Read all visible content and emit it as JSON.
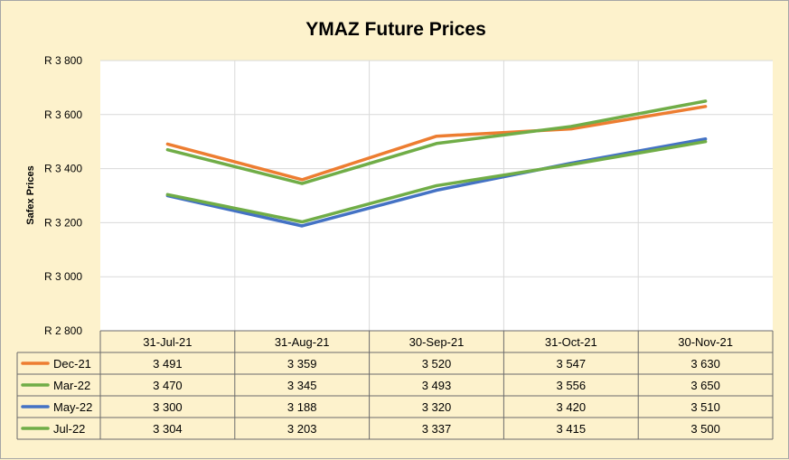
{
  "chart_data": {
    "type": "line",
    "title": "YMAZ Future Prices",
    "ylabel": "Safex Prices",
    "xlabel": "",
    "categories": [
      "31-Jul-21",
      "31-Aug-21",
      "30-Sep-21",
      "31-Oct-21",
      "30-Nov-21"
    ],
    "ylim": [
      2800,
      3800
    ],
    "yticks": [
      2800,
      3000,
      3200,
      3400,
      3600,
      3800
    ],
    "ytick_labels": [
      "R 2 800",
      "R 3 000",
      "R 3 200",
      "R 3 400",
      "R 3 600",
      "R 3 800"
    ],
    "grid": true,
    "legend": "data-table",
    "series": [
      {
        "name": "Dec-21",
        "color": "#ed7d31",
        "values": [
          3491,
          3359,
          3520,
          3547,
          3630
        ],
        "labels": [
          "3 491",
          "3 359",
          "3 520",
          "3 547",
          "3 630"
        ]
      },
      {
        "name": "Mar-22",
        "color": "#70ad47",
        "values": [
          3470,
          3345,
          3493,
          3556,
          3650
        ],
        "labels": [
          "3 470",
          "3 345",
          "3 493",
          "3 556",
          "3 650"
        ]
      },
      {
        "name": "May-22",
        "color": "#4472c4",
        "values": [
          3300,
          3188,
          3320,
          3420,
          3510
        ],
        "labels": [
          "3 300",
          "3 188",
          "3 320",
          "3 420",
          "3 510"
        ]
      },
      {
        "name": "Jul-22",
        "color": "#70ad47",
        "values": [
          3304,
          3203,
          3337,
          3415,
          3500
        ],
        "labels": [
          "3 304",
          "3 203",
          "3 337",
          "3 415",
          "3 500"
        ]
      }
    ]
  }
}
